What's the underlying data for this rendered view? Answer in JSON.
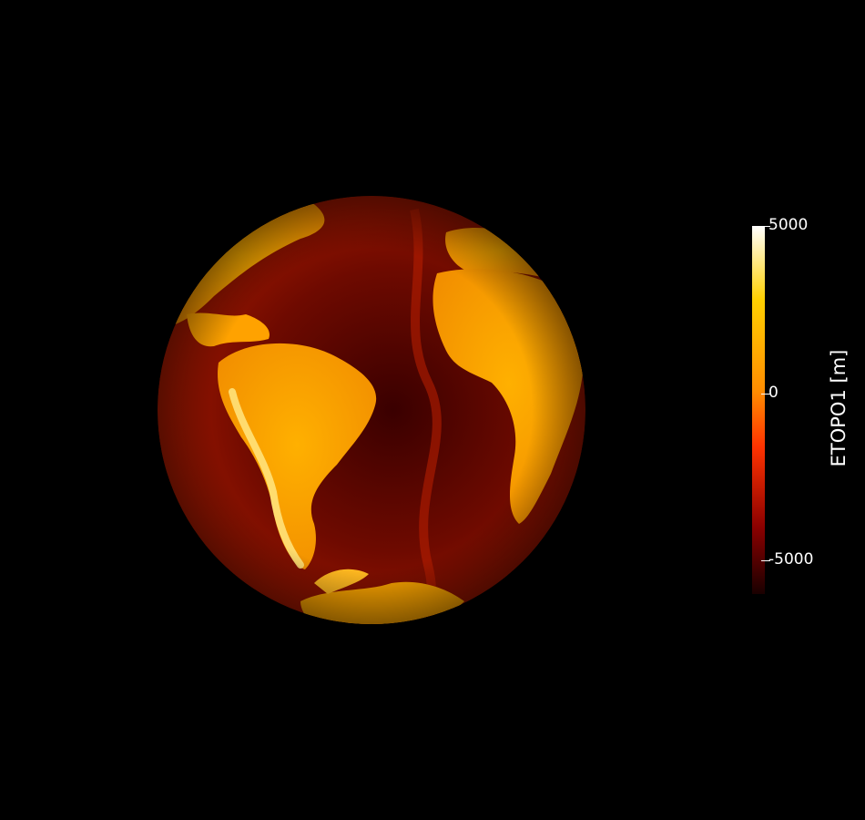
{
  "colorbar": {
    "title": "ETOPO1 [m]",
    "ticks": [
      {
        "value": 5000,
        "label": "5000"
      },
      {
        "value": 0,
        "label": "0"
      },
      {
        "value": -5000,
        "label": "-5000"
      }
    ],
    "range": [
      -6000,
      5000
    ],
    "colors": {
      "low": "#1a0000",
      "mid_low": "#8a0000",
      "mid": "#ff3300",
      "zero": "#ff8c00",
      "high": "#ffd000",
      "top": "#ffffff"
    }
  },
  "globe": {
    "projection": "orthographic",
    "view_center": "South Atlantic Ocean",
    "colormap": "hot",
    "background": "#000000"
  }
}
